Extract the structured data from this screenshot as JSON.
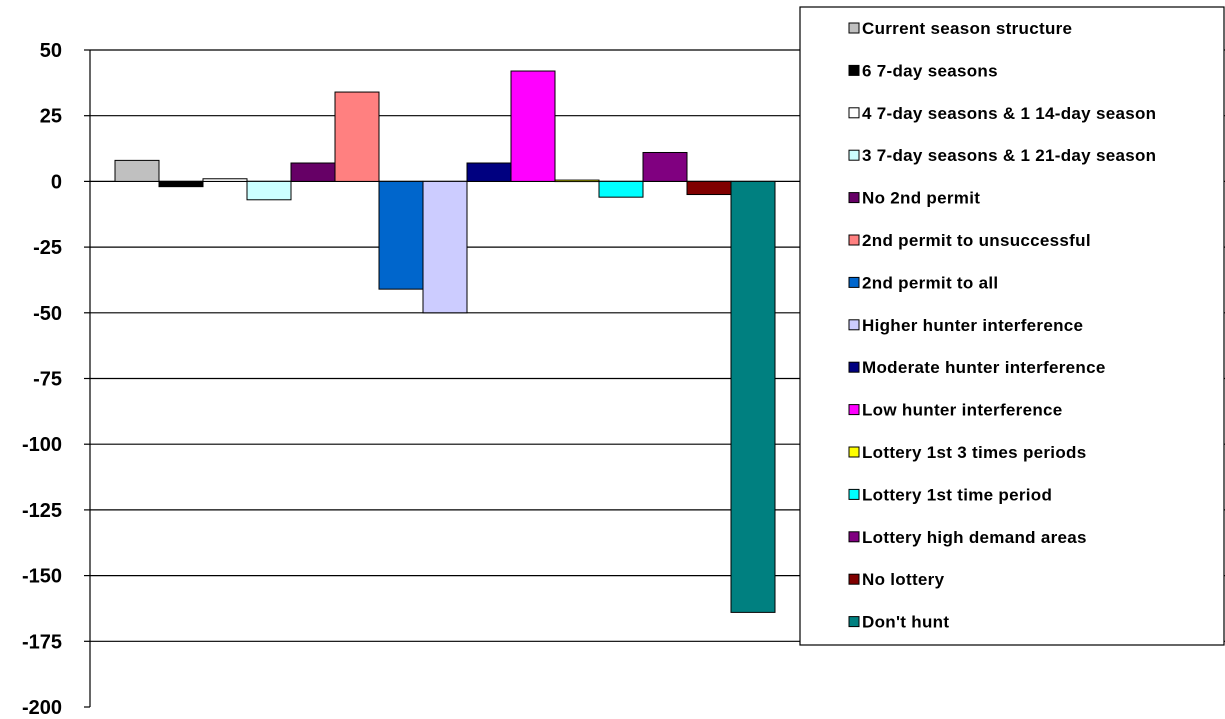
{
  "chart_data": {
    "type": "bar",
    "title": "",
    "xlabel": "",
    "ylabel": "",
    "ylim": [
      -200,
      50
    ],
    "yticks": [
      50,
      25,
      0,
      -25,
      -50,
      -75,
      -100,
      -125,
      -150,
      -175,
      -200
    ],
    "grid": true,
    "legend_position": "right",
    "series": [
      {
        "name": "Current season structure",
        "value": 8,
        "color": "#c0c0c0"
      },
      {
        "name": "6 7-day seasons",
        "value": -2,
        "color": "#000000"
      },
      {
        "name": "4 7-day seasons & 1 14-day season",
        "value": 1,
        "color": "#ffffff"
      },
      {
        "name": "3 7-day seasons & 1 21-day season",
        "value": -7,
        "color": "#ccffff"
      },
      {
        "name": "No 2nd permit",
        "value": 7,
        "color": "#660066"
      },
      {
        "name": "2nd permit to unsuccessful",
        "value": 34,
        "color": "#ff8080"
      },
      {
        "name": "2nd permit to all",
        "value": -41,
        "color": "#0066cc"
      },
      {
        "name": "Higher hunter interference",
        "value": -50,
        "color": "#ccccff"
      },
      {
        "name": "Moderate hunter interference",
        "value": 7,
        "color": "#000080"
      },
      {
        "name": "Low hunter interference",
        "value": 42,
        "color": "#ff00ff"
      },
      {
        "name": "Lottery 1st 3 times periods",
        "value": 0.5,
        "color": "#ffff00"
      },
      {
        "name": "Lottery 1st time period",
        "value": -6,
        "color": "#00ffff"
      },
      {
        "name": "Lottery high demand areas",
        "value": 11,
        "color": "#800080"
      },
      {
        "name": "No lottery",
        "value": -5,
        "color": "#800000"
      },
      {
        "name": "Don't hunt",
        "value": -164,
        "color": "#008080"
      }
    ]
  }
}
